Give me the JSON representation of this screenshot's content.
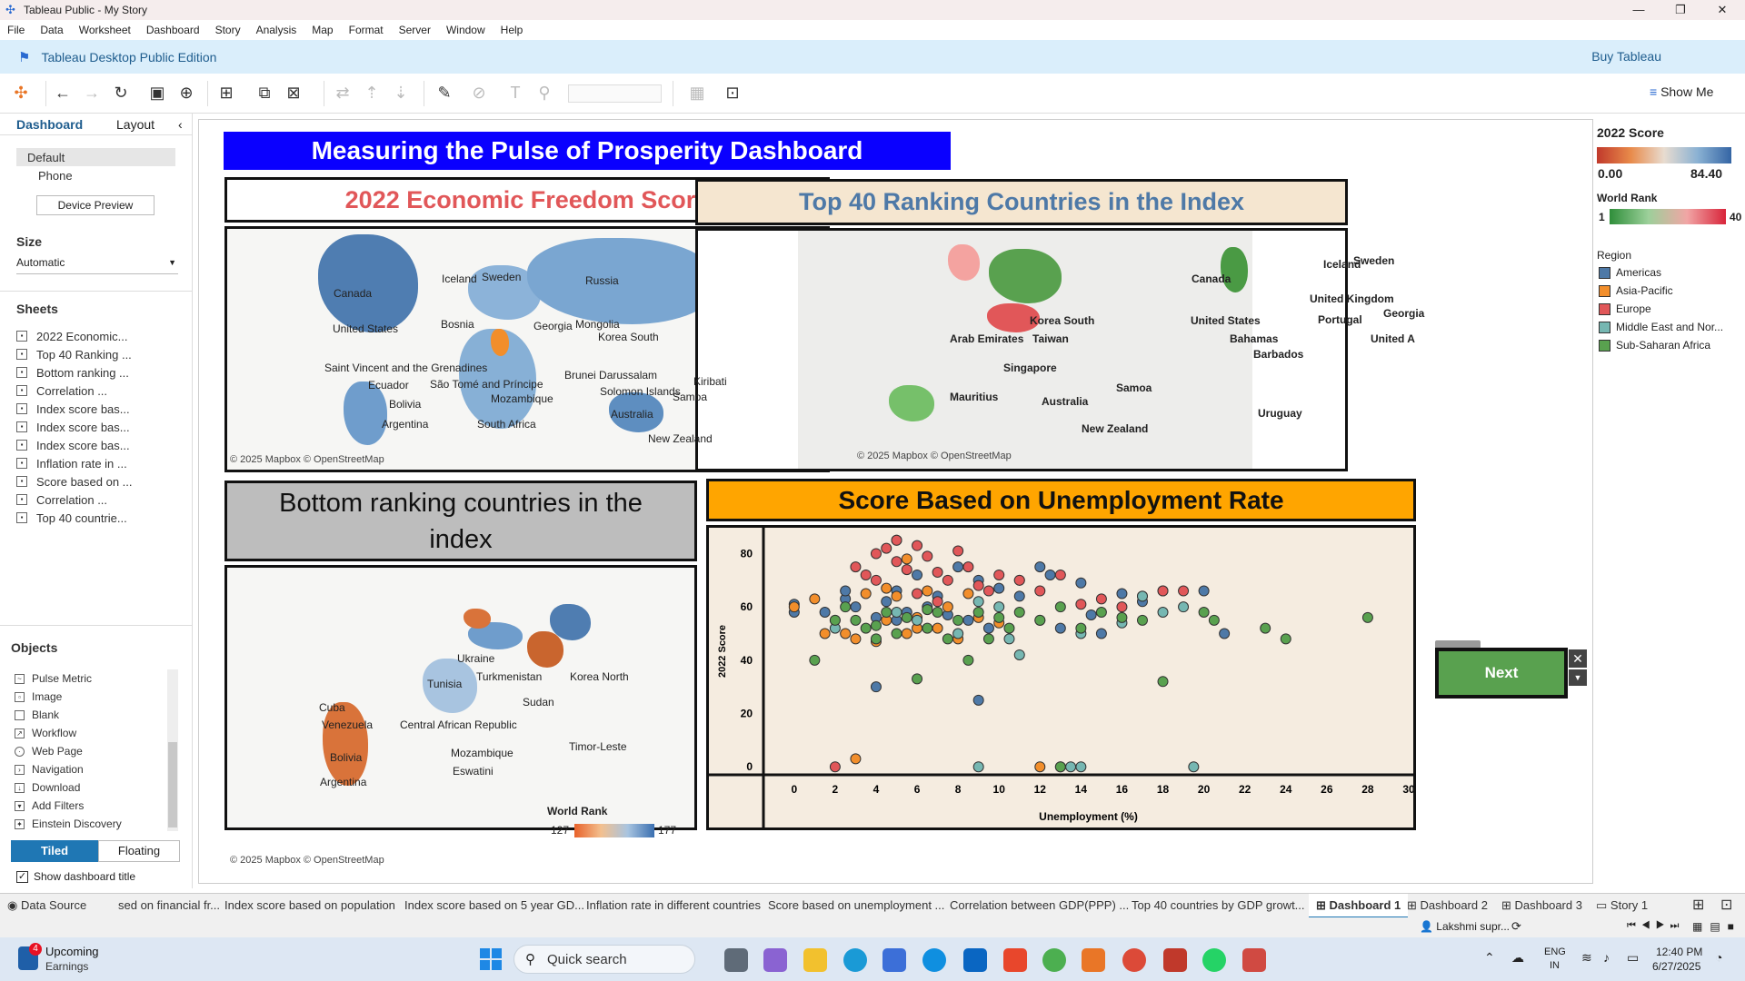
{
  "window": {
    "title": "Tableau Public - My Story"
  },
  "menu": [
    "File",
    "Data",
    "Worksheet",
    "Dashboard",
    "Story",
    "Analysis",
    "Map",
    "Format",
    "Server",
    "Window",
    "Help"
  ],
  "edition": {
    "label": "Tableau Desktop Public Edition",
    "buy": "Buy Tableau"
  },
  "toolbar": {
    "show_me": "Show Me"
  },
  "left_panel": {
    "tabs": [
      "Dashboard",
      "Layout"
    ],
    "devices": [
      "Default",
      "Phone"
    ],
    "device_preview": "Device Preview",
    "size_header": "Size",
    "size_value": "Automatic",
    "sheets_header": "Sheets",
    "sheets": [
      "2022 Economic...",
      "Top 40 Ranking ...",
      "Bottom ranking ...",
      "Correlation ...",
      "Index score bas...",
      "Index score bas...",
      "Index score bas...",
      "Inflation rate in ...",
      "Score based on ...",
      "Correlation ...",
      "Top 40 countrie..."
    ],
    "objects_header": "Objects",
    "objects": [
      "Pulse Metric",
      "Image",
      "Blank",
      "Workflow",
      "Web Page",
      "Navigation",
      "Download",
      "Add Filters",
      "Einstein Discovery"
    ],
    "tiled": "Tiled",
    "floating": "Floating",
    "show_title": "Show dashboard title"
  },
  "dashboard": {
    "title": "Measuring the Pulse of Prosperity Dashboard",
    "panel1_title": "2022 Economic Freedom Score",
    "panel2_title": "Top 40 Ranking Countries in the Index",
    "panel3_title": "Bottom ranking countries in the index",
    "panel4_title": "Score Based on Unemployment Rate",
    "credit": "© 2025 Mapbox © OpenStreetMap",
    "map1_labels": [
      "Canada",
      "United States",
      "Iceland",
      "Sweden",
      "Russia",
      "Mongolia",
      "Korea South",
      "Bosnia",
      "Georgia",
      "Saint Vincent and the Grenadines",
      "Ecuador",
      "Bolivia",
      "Argentina",
      "São Tomé and Príncipe",
      "Mozambique",
      "South Africa",
      "Brunei Darussalam",
      "Solomon Islands",
      "Kiribati",
      "Samoa",
      "Australia",
      "New Zealand"
    ],
    "map2_labels": [
      "Canada",
      "United States",
      "Iceland",
      "Sweden",
      "United Kingdom",
      "Portugal",
      "Georgia",
      "Korea South",
      "Taiwan",
      "Arab Emirates",
      "Singapore",
      "Mauritius",
      "Australia",
      "Samoa",
      "New Zealand",
      "Bahamas",
      "Barbados",
      "Uruguay",
      "United A"
    ],
    "map3_labels": [
      "Ukraine",
      "Tunisia",
      "Turkmenistan",
      "Korea North",
      "Cuba",
      "Venezuela",
      "Central African Republic",
      "Bolivia",
      "Argentina",
      "Mozambique",
      "Eswatini",
      "Timor-Leste",
      "Sudan"
    ],
    "map3_legend": {
      "title": "World Rank",
      "min": "127",
      "max": "177"
    },
    "next_button": "Next"
  },
  "legend": {
    "score_title": "2022 Score",
    "score_min": "0.00",
    "score_max": "84.40",
    "rank_title": "World Rank",
    "rank_min": "1",
    "rank_max": "40",
    "region_title": "Region",
    "regions": [
      {
        "name": "Americas",
        "color": "#4e79a7"
      },
      {
        "name": "Asia-Pacific",
        "color": "#f28e2b"
      },
      {
        "name": "Europe",
        "color": "#e15759"
      },
      {
        "name": "Middle East and Nor...",
        "color": "#76b7b2"
      },
      {
        "name": "Sub-Saharan Africa",
        "color": "#59a14f"
      }
    ]
  },
  "bottom_tabs": [
    "Data Source",
    "sed on financial fr...",
    "Index score based on population",
    "Index score based on 5 year GD...",
    "Inflation rate in different countries",
    "Score based on unemployment ...",
    "Correlation between GDP(PPP) ...",
    "Top 40 countries by GDP growt...",
    "Dashboard 1",
    "Dashboard 2",
    "Dashboard 3",
    "Story 1"
  ],
  "status": {
    "user": "Lakshmi supr..."
  },
  "taskbar": {
    "weather_title": "Upcoming",
    "weather_sub": "Earnings",
    "search": "Quick search",
    "lang1": "ENG",
    "lang2": "IN",
    "time": "12:40 PM",
    "date": "6/27/2025",
    "badge": "4"
  },
  "chart_data": {
    "type": "scatter",
    "title": "Score Based on Unemployment Rate",
    "xlabel": "Unemployment (%)",
    "ylabel": "2022 Score",
    "xlim": [
      -1.5,
      30
    ],
    "ylim": [
      -3,
      88
    ],
    "xticks": [
      0,
      2,
      4,
      6,
      8,
      10,
      12,
      14,
      16,
      18,
      20,
      22,
      24,
      26,
      28,
      30
    ],
    "yticks": [
      0,
      20,
      40,
      60,
      80
    ],
    "series": [
      {
        "name": "Americas",
        "color": "#4e79a7",
        "points": [
          [
            0,
            58
          ],
          [
            0,
            61
          ],
          [
            1.5,
            58
          ],
          [
            2.5,
            63
          ],
          [
            3,
            60
          ],
          [
            4,
            56
          ],
          [
            4.5,
            62
          ],
          [
            5,
            55
          ],
          [
            5,
            66
          ],
          [
            5.5,
            58
          ],
          [
            6,
            72
          ],
          [
            6.5,
            60
          ],
          [
            7,
            64
          ],
          [
            7.5,
            57
          ],
          [
            8,
            75
          ],
          [
            8.5,
            55
          ],
          [
            9,
            70
          ],
          [
            9.5,
            52
          ],
          [
            10,
            67
          ],
          [
            11,
            64
          ],
          [
            12,
            75
          ],
          [
            12.5,
            72
          ],
          [
            13,
            52
          ],
          [
            14,
            69
          ],
          [
            14.5,
            57
          ],
          [
            15,
            50
          ],
          [
            16,
            65
          ],
          [
            17,
            62
          ],
          [
            18,
            66
          ],
          [
            20,
            66
          ],
          [
            21,
            50
          ],
          [
            4,
            30
          ],
          [
            9,
            25
          ],
          [
            2.5,
            66
          ]
        ]
      },
      {
        "name": "Asia-Pacific",
        "color": "#f28e2b",
        "points": [
          [
            0,
            60
          ],
          [
            1,
            63
          ],
          [
            1.5,
            50
          ],
          [
            2,
            55
          ],
          [
            2.5,
            50
          ],
          [
            3,
            48
          ],
          [
            3.5,
            65
          ],
          [
            4,
            47
          ],
          [
            4.5,
            55
          ],
          [
            5,
            64
          ],
          [
            5.5,
            50
          ],
          [
            6,
            56
          ],
          [
            6.5,
            66
          ],
          [
            7,
            52
          ],
          [
            7.5,
            60
          ],
          [
            8,
            48
          ],
          [
            9,
            56
          ],
          [
            10,
            54
          ],
          [
            12,
            0
          ],
          [
            3,
            3
          ],
          [
            4.5,
            67
          ],
          [
            5.5,
            78
          ],
          [
            6,
            52
          ],
          [
            8.5,
            65
          ],
          [
            11,
            70
          ]
        ]
      },
      {
        "name": "Europe",
        "color": "#e15759",
        "points": [
          [
            3,
            75
          ],
          [
            3.5,
            72
          ],
          [
            4,
            80
          ],
          [
            4.5,
            82
          ],
          [
            5,
            85
          ],
          [
            5,
            77
          ],
          [
            5.5,
            74
          ],
          [
            6,
            83
          ],
          [
            6.5,
            79
          ],
          [
            7,
            73
          ],
          [
            7.5,
            70
          ],
          [
            8,
            81
          ],
          [
            8.5,
            75
          ],
          [
            9,
            68
          ],
          [
            9.5,
            66
          ],
          [
            10,
            72
          ],
          [
            11,
            70
          ],
          [
            12,
            66
          ],
          [
            13,
            72
          ],
          [
            14,
            61
          ],
          [
            15,
            63
          ],
          [
            16,
            60
          ],
          [
            17,
            64
          ],
          [
            18,
            66
          ],
          [
            19,
            66
          ],
          [
            4,
            70
          ],
          [
            6,
            65
          ],
          [
            7,
            62
          ],
          [
            5,
            85
          ],
          [
            2,
            0
          ]
        ]
      },
      {
        "name": "Middle East and North Africa",
        "color": "#76b7b2",
        "points": [
          [
            2,
            52
          ],
          [
            5,
            58
          ],
          [
            6,
            55
          ],
          [
            8,
            50
          ],
          [
            9,
            62
          ],
          [
            10,
            60
          ],
          [
            10.5,
            48
          ],
          [
            11,
            42
          ],
          [
            12,
            55
          ],
          [
            14,
            50
          ],
          [
            16,
            54
          ],
          [
            17,
            64
          ],
          [
            18,
            58
          ],
          [
            19,
            60
          ],
          [
            9,
            0
          ],
          [
            13,
            0
          ],
          [
            13.5,
            0
          ],
          [
            14,
            0
          ],
          [
            19.5,
            0
          ]
        ]
      },
      {
        "name": "Sub-Saharan Africa",
        "color": "#59a14f",
        "points": [
          [
            1,
            40
          ],
          [
            2,
            55
          ],
          [
            2.5,
            60
          ],
          [
            3,
            55
          ],
          [
            3.5,
            52
          ],
          [
            4,
            48
          ],
          [
            4.5,
            58
          ],
          [
            5,
            50
          ],
          [
            5.5,
            56
          ],
          [
            6,
            33
          ],
          [
            6.5,
            52
          ],
          [
            7,
            58
          ],
          [
            7.5,
            48
          ],
          [
            8,
            55
          ],
          [
            8.5,
            40
          ],
          [
            9,
            58
          ],
          [
            9.5,
            48
          ],
          [
            10,
            56
          ],
          [
            10.5,
            52
          ],
          [
            11,
            58
          ],
          [
            12,
            55
          ],
          [
            13,
            60
          ],
          [
            14,
            52
          ],
          [
            15,
            58
          ],
          [
            16,
            56
          ],
          [
            17,
            55
          ],
          [
            18,
            32
          ],
          [
            20,
            58
          ],
          [
            20.5,
            55
          ],
          [
            23,
            52
          ],
          [
            24,
            48
          ],
          [
            28,
            56
          ],
          [
            13,
            0
          ],
          [
            4,
            53
          ],
          [
            6.5,
            59
          ]
        ]
      }
    ]
  }
}
